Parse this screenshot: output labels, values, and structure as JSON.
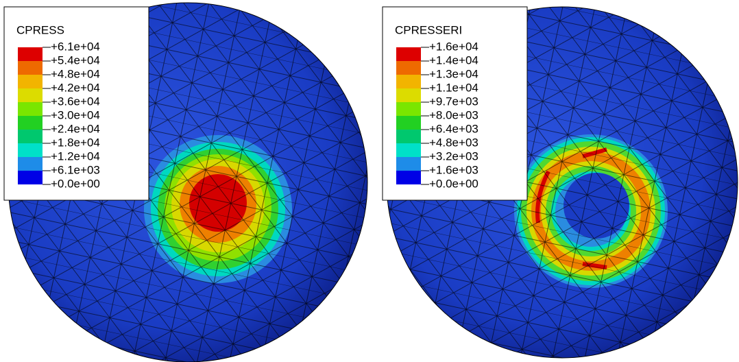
{
  "panels": [
    {
      "title": "CPRESS",
      "labels": [
        "+6.1e+04",
        "+5.4e+04",
        "+4.8e+04",
        "+4.2e+04",
        "+3.6e+04",
        "+3.0e+04",
        "+2.4e+04",
        "+1.8e+04",
        "+1.2e+04",
        "+6.1e+03",
        "+0.0e+00"
      ],
      "colors": [
        "#dd0000",
        "#ee6a00",
        "#f2b400",
        "#dcdc00",
        "#7ae600",
        "#22d022",
        "#00c86e",
        "#00e0c8",
        "#1e8ce8",
        "#0000e6"
      ]
    },
    {
      "title": "CPRESSERI",
      "labels": [
        "+1.6e+04",
        "+1.4e+04",
        "+1.3e+04",
        "+1.1e+04",
        "+9.7e+03",
        "+8.0e+03",
        "+6.4e+03",
        "+4.8e+03",
        "+3.2e+03",
        "+1.6e+03",
        "+0.0e+00"
      ],
      "colors": [
        "#dd0000",
        "#ee6a00",
        "#f2b400",
        "#dcdc00",
        "#7ae600",
        "#22d022",
        "#00c86e",
        "#00e0c8",
        "#1e8ce8",
        "#0000e6"
      ]
    }
  ]
}
